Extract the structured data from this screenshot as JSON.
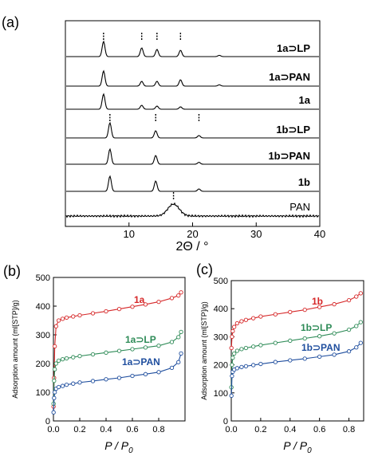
{
  "chart_data": [
    {
      "panel_label": "(a)",
      "type": "line",
      "xlabel": "2Θ / °",
      "xlim": [
        0,
        40
      ],
      "xticks": [
        10,
        20,
        30,
        40
      ],
      "series": [
        {
          "name": "1a⊃LP",
          "color": "#000000",
          "peaks": [
            6.0,
            12.0,
            14.4,
            18.1,
            24.2
          ],
          "heights": [
            0.95,
            0.55,
            0.45,
            0.4,
            0.08
          ],
          "markers": [
            6.0,
            12.0,
            14.4,
            18.1
          ]
        },
        {
          "name": "1a⊃PAN",
          "color": "#000000",
          "peaks": [
            6.0,
            12.0,
            14.4,
            18.1,
            24.2
          ],
          "heights": [
            0.95,
            0.3,
            0.3,
            0.4,
            0.08
          ],
          "markers": []
        },
        {
          "name": "1a",
          "color": "#000000",
          "peaks": [
            6.0,
            12.0,
            14.4,
            18.1
          ],
          "heights": [
            0.95,
            0.25,
            0.2,
            0.15
          ],
          "markers": []
        },
        {
          "name": "1b⊃LP",
          "color": "#000000",
          "peaks": [
            7.0,
            14.2,
            21.0
          ],
          "heights": [
            0.95,
            0.45,
            0.15
          ],
          "markers": [
            7.0,
            14.2,
            21.0
          ]
        },
        {
          "name": "1b⊃PAN",
          "color": "#000000",
          "peaks": [
            7.0,
            14.2,
            21.0
          ],
          "heights": [
            0.95,
            0.55,
            0.12
          ],
          "markers": []
        },
        {
          "name": "1b",
          "color": "#000000",
          "peaks": [
            7.0,
            14.2,
            21.0
          ],
          "heights": [
            0.95,
            0.65,
            0.15
          ],
          "markers": []
        },
        {
          "name": "PAN",
          "color": "#000000",
          "peaks": [
            17.0
          ],
          "heights": [
            0.75
          ],
          "markers": [
            17.0
          ],
          "broad": true
        }
      ]
    },
    {
      "panel_label": "(b)",
      "type": "line",
      "xlabel": "P / P0",
      "ylabel": "Adsorption amount (ml[STP]/g)",
      "xlim": [
        0,
        1.0
      ],
      "ylim": [
        0,
        500
      ],
      "xticks": [
        0.0,
        0.2,
        0.4,
        0.6,
        0.8
      ],
      "yticks": [
        0,
        100,
        200,
        300,
        400,
        500
      ],
      "series": [
        {
          "name": "1a",
          "color": "#d62728",
          "x": [
            0.001,
            0.005,
            0.01,
            0.02,
            0.04,
            0.07,
            0.1,
            0.15,
            0.2,
            0.3,
            0.4,
            0.5,
            0.6,
            0.7,
            0.8,
            0.9,
            0.95,
            0.97
          ],
          "y": [
            50,
            150,
            260,
            330,
            350,
            356,
            360,
            364,
            368,
            375,
            382,
            390,
            398,
            406,
            415,
            428,
            437,
            448
          ]
        },
        {
          "name": "1a⊃LP",
          "color": "#2e8b57",
          "x": [
            0.001,
            0.005,
            0.01,
            0.02,
            0.04,
            0.07,
            0.1,
            0.15,
            0.2,
            0.3,
            0.4,
            0.5,
            0.6,
            0.7,
            0.8,
            0.9,
            0.95,
            0.97
          ],
          "y": [
            60,
            140,
            180,
            200,
            210,
            215,
            218,
            222,
            226,
            232,
            238,
            244,
            250,
            256,
            262,
            275,
            292,
            310
          ]
        },
        {
          "name": "1a⊃PAN",
          "color": "#1f4e9e",
          "x": [
            0.001,
            0.005,
            0.01,
            0.02,
            0.04,
            0.07,
            0.1,
            0.15,
            0.2,
            0.3,
            0.4,
            0.5,
            0.6,
            0.7,
            0.8,
            0.9,
            0.95,
            0.97
          ],
          "y": [
            30,
            80,
            100,
            112,
            118,
            122,
            126,
            130,
            134,
            139,
            145,
            150,
            157,
            163,
            170,
            185,
            205,
            235
          ]
        }
      ]
    },
    {
      "panel_label": "(c)",
      "type": "line",
      "xlabel": "P / P0",
      "ylabel": "Adsorption amount (ml[STP]/g)",
      "xlim": [
        0,
        0.9
      ],
      "ylim": [
        0,
        500
      ],
      "xticks": [
        0.0,
        0.2,
        0.4,
        0.6,
        0.8
      ],
      "yticks": [
        0,
        100,
        200,
        300,
        400,
        500
      ],
      "series": [
        {
          "name": "1b",
          "color": "#d62728",
          "x": [
            0.001,
            0.005,
            0.01,
            0.02,
            0.04,
            0.07,
            0.1,
            0.15,
            0.2,
            0.3,
            0.4,
            0.5,
            0.6,
            0.7,
            0.8,
            0.85,
            0.88
          ],
          "y": [
            260,
            300,
            320,
            335,
            348,
            355,
            360,
            366,
            372,
            380,
            388,
            396,
            406,
            416,
            430,
            443,
            455
          ]
        },
        {
          "name": "1b⊃LP",
          "color": "#2e8b57",
          "x": [
            0.001,
            0.005,
            0.01,
            0.02,
            0.04,
            0.07,
            0.1,
            0.15,
            0.2,
            0.3,
            0.4,
            0.5,
            0.6,
            0.7,
            0.8,
            0.85,
            0.88
          ],
          "y": [
            120,
            200,
            225,
            240,
            250,
            256,
            260,
            265,
            270,
            278,
            286,
            294,
            302,
            312,
            325,
            338,
            352
          ]
        },
        {
          "name": "1b⊃PAN",
          "color": "#1f4e9e",
          "x": [
            0.001,
            0.005,
            0.01,
            0.02,
            0.04,
            0.07,
            0.1,
            0.15,
            0.2,
            0.3,
            0.4,
            0.5,
            0.6,
            0.7,
            0.8,
            0.85,
            0.88
          ],
          "y": [
            90,
            160,
            175,
            183,
            188,
            192,
            195,
            199,
            203,
            210,
            216,
            222,
            229,
            236,
            248,
            262,
            278
          ]
        }
      ]
    }
  ]
}
